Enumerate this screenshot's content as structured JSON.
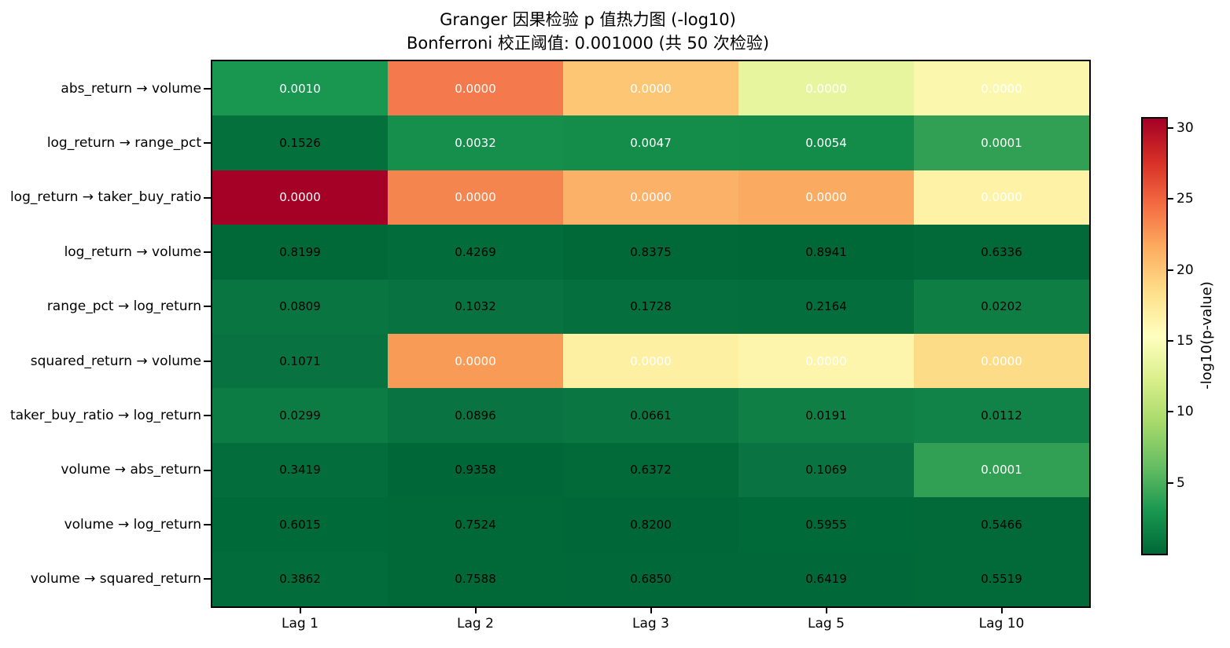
{
  "chart_data": {
    "type": "heatmap",
    "title": "Granger 因果检验 p 值热力图 (-log10)",
    "subtitle": "Bonferroni 校正阈值: 0.001000 (共 50 次检验)",
    "columns": [
      "Lag 1",
      "Lag 2",
      "Lag 3",
      "Lag 5",
      "Lag 10"
    ],
    "rows": [
      "abs_return → volume",
      "log_return → range_pct",
      "log_return → taker_buy_ratio",
      "log_return → volume",
      "range_pct → log_return",
      "squared_return → volume",
      "taker_buy_ratio → log_return",
      "volume → abs_return",
      "volume → log_return",
      "volume → squared_return"
    ],
    "p_values": [
      [
        "0.0010",
        "0.0000",
        "0.0000",
        "0.0000",
        "0.0000"
      ],
      [
        "0.1526",
        "0.0032",
        "0.0047",
        "0.0054",
        "0.0001"
      ],
      [
        "0.0000",
        "0.0000",
        "0.0000",
        "0.0000",
        "0.0000"
      ],
      [
        "0.8199",
        "0.4269",
        "0.8375",
        "0.8941",
        "0.6336"
      ],
      [
        "0.0809",
        "0.1032",
        "0.1728",
        "0.2164",
        "0.0202"
      ],
      [
        "0.1071",
        "0.0000",
        "0.0000",
        "0.0000",
        "0.0000"
      ],
      [
        "0.0299",
        "0.0896",
        "0.0661",
        "0.0191",
        "0.0112"
      ],
      [
        "0.3419",
        "0.9358",
        "0.6372",
        "0.1069",
        "0.0001"
      ],
      [
        "0.6015",
        "0.7524",
        "0.8200",
        "0.5955",
        "0.5466"
      ],
      [
        "0.3862",
        "0.7588",
        "0.6850",
        "0.6419",
        "0.5519"
      ]
    ],
    "cell_colors": [
      [
        "#199650",
        "#f47a4d",
        "#fcc674",
        "#e8f59f",
        "#fbf7ad"
      ],
      [
        "#04703c",
        "#158f4b",
        "#148d4a",
        "#138c49",
        "#31a054"
      ],
      [
        "#a50026",
        "#f5854e",
        "#fbb168",
        "#fbab61",
        "#fdf2a6"
      ],
      [
        "#016838",
        "#036c3b",
        "#016838",
        "#006837",
        "#026a39"
      ],
      [
        "#097541",
        "#087340",
        "#066f3e",
        "#056e3d",
        "#0e7e45"
      ],
      [
        "#087340",
        "#f89b57",
        "#fdf0a2",
        "#fdf5ab",
        "#fcdc87"
      ],
      [
        "#0d7c44",
        "#097441",
        "#0a7742",
        "#0f7f46",
        "#118349"
      ],
      [
        "#036d3b",
        "#006838",
        "#026a39",
        "#097441",
        "#31a054"
      ],
      [
        "#016a39",
        "#016938",
        "#006838",
        "#016a39",
        "#026a39"
      ],
      [
        "#036c3b",
        "#016938",
        "#016939",
        "#016939",
        "#026a39"
      ]
    ],
    "cell_text_colors": [
      [
        "#ffffff",
        "#ffffff",
        "#ffffff",
        "#ffffff",
        "#ffffff"
      ],
      [
        "#000000",
        "#ffffff",
        "#ffffff",
        "#ffffff",
        "#ffffff"
      ],
      [
        "#ffffff",
        "#ffffff",
        "#ffffff",
        "#ffffff",
        "#ffffff"
      ],
      [
        "#000000",
        "#000000",
        "#000000",
        "#000000",
        "#000000"
      ],
      [
        "#000000",
        "#000000",
        "#000000",
        "#000000",
        "#000000"
      ],
      [
        "#000000",
        "#ffffff",
        "#ffffff",
        "#ffffff",
        "#ffffff"
      ],
      [
        "#000000",
        "#000000",
        "#000000",
        "#000000",
        "#000000"
      ],
      [
        "#000000",
        "#000000",
        "#000000",
        "#000000",
        "#ffffff"
      ],
      [
        "#000000",
        "#000000",
        "#000000",
        "#000000",
        "#000000"
      ],
      [
        "#000000",
        "#000000",
        "#000000",
        "#000000",
        "#000000"
      ]
    ],
    "colorbar": {
      "label": "-log10(p-value)",
      "ticks": [
        "30",
        "25",
        "20",
        "15",
        "10",
        "5"
      ],
      "tick_values": [
        30,
        25,
        20,
        15,
        10,
        5
      ],
      "vmin": 0,
      "vmax": 30.66,
      "colormap": "RdYlGn_r",
      "gradient_top_to_bottom": [
        "#a50026",
        "#d73027",
        "#f46d43",
        "#fdae61",
        "#fee08b",
        "#ffffbf",
        "#d9ef8b",
        "#a6d96a",
        "#66bd63",
        "#1a9850",
        "#006837"
      ]
    }
  }
}
